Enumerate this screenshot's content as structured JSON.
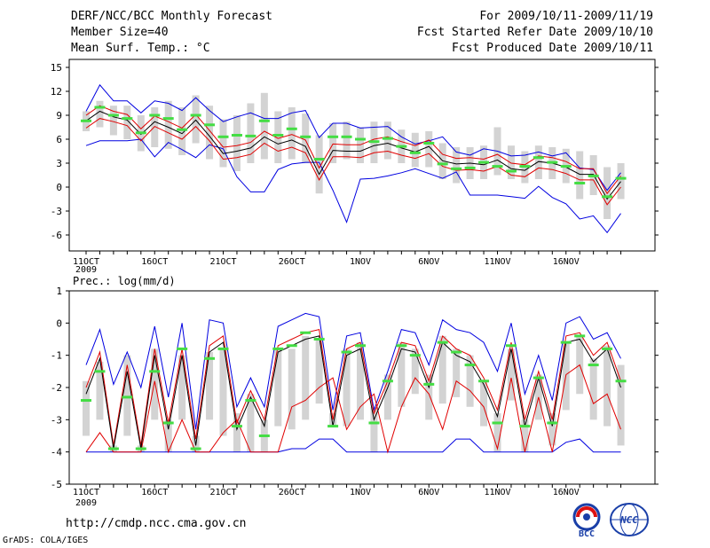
{
  "header": {
    "title": "DERF/NCC/BCC Monthly Forecast",
    "member_size": "Member Size=40",
    "variable_1": "Mean Surf. Temp.: °C",
    "period": "For 2009/10/11-2009/11/19",
    "fcst_started": "Fcst Started Refer Date 2009/10/10",
    "fcst_produced": "Fcst Produced Date 2009/10/11"
  },
  "colors": {
    "box": "#d3d3d3",
    "mean": "#000000",
    "inner": "#e00000",
    "outer": "#0000e0",
    "obs": "#44dd44"
  },
  "chart_data": [
    {
      "type": "line",
      "title": "Mean Surf. Temp.: °C",
      "x_tick_labels": [
        "11OCT",
        "16OCT",
        "21OCT",
        "26OCT",
        "1NOV",
        "6NOV",
        "11NOV",
        "16NOV"
      ],
      "x_year_label": "2009",
      "ylim": [
        -8,
        16
      ],
      "y_ticks": [
        15,
        12,
        9,
        6,
        3,
        0,
        -3,
        -6
      ],
      "days": 40,
      "series": [
        {
          "name": "max",
          "values": [
            5.2,
            5.8,
            5.8,
            5.8,
            6.0,
            3.8,
            5.6,
            4.7,
            3.7,
            5.3,
            4.8,
            1.3,
            -0.6,
            -0.6,
            2.2,
            2.9,
            3.1,
            3.1,
            -0.4,
            -4.4,
            1.0,
            1.1,
            1.4,
            1.8,
            2.3,
            1.7,
            1.1,
            1.9,
            -1.0,
            -1.0,
            -1.0,
            -1.2,
            -1.4,
            0.1,
            -1.3,
            -2.1,
            -4.0,
            -3.6,
            -5.7,
            -3.3
          ]
        },
        {
          "name": "p10",
          "values": [
            7.4,
            8.6,
            8.2,
            7.7,
            5.8,
            7.6,
            6.8,
            6.0,
            7.6,
            5.8,
            3.5,
            3.7,
            4.1,
            5.5,
            4.5,
            5.0,
            4.3,
            0.9,
            3.8,
            3.8,
            3.7,
            4.3,
            4.5,
            4.0,
            3.6,
            4.2,
            2.6,
            2.1,
            2.2,
            2.0,
            2.6,
            1.5,
            1.3,
            2.4,
            2.2,
            1.7,
            0.9,
            0.9,
            -2.2,
            0.0
          ]
        },
        {
          "name": "mean",
          "values": [
            8.3,
            9.5,
            8.8,
            8.4,
            6.6,
            8.2,
            7.5,
            6.7,
            8.4,
            6.4,
            4.2,
            4.5,
            4.9,
            6.3,
            5.4,
            5.9,
            5.1,
            1.6,
            4.6,
            4.5,
            4.5,
            5.2,
            5.5,
            4.9,
            4.4,
            5.1,
            3.3,
            2.9,
            3.0,
            2.8,
            3.4,
            2.3,
            2.1,
            3.2,
            3.0,
            2.5,
            1.6,
            1.6,
            -1.5,
            0.7
          ]
        },
        {
          "name": "p90",
          "values": [
            9.0,
            10.2,
            9.5,
            9.1,
            7.3,
            8.9,
            8.2,
            7.4,
            9.1,
            7.1,
            5.0,
            5.2,
            5.6,
            7.0,
            6.1,
            6.6,
            5.9,
            2.4,
            5.4,
            5.3,
            5.3,
            6.0,
            6.3,
            5.7,
            5.2,
            5.9,
            4.1,
            3.6,
            3.7,
            3.5,
            4.1,
            3.0,
            2.8,
            3.9,
            3.7,
            3.2,
            2.3,
            2.3,
            -0.8,
            1.4
          ]
        },
        {
          "name": "min",
          "values": [
            9.5,
            12.8,
            10.8,
            10.8,
            9.3,
            10.8,
            10.5,
            9.6,
            11.2,
            9.6,
            8.2,
            8.8,
            9.3,
            8.6,
            8.6,
            9.3,
            9.6,
            6.2,
            8.0,
            8.0,
            7.4,
            7.5,
            7.6,
            6.3,
            5.4,
            5.8,
            6.3,
            4.4,
            4.0,
            4.8,
            4.5,
            3.9,
            4.0,
            4.4,
            3.9,
            4.3,
            2.4,
            2.2,
            -0.4,
            1.8
          ]
        },
        {
          "name": "box_low",
          "values": [
            7.0,
            7.5,
            6.5,
            6.0,
            4.5,
            5.0,
            4.8,
            4.0,
            5.5,
            3.5,
            2.5,
            2.0,
            3.0,
            3.5,
            3.0,
            3.5,
            3.0,
            -0.8,
            3.0,
            3.5,
            3.0,
            3.0,
            3.5,
            3.0,
            2.5,
            2.5,
            1.0,
            0.5,
            1.0,
            1.0,
            1.5,
            1.0,
            0.5,
            1.0,
            1.0,
            0.5,
            -1.5,
            -1.0,
            -4.0,
            -1.5
          ]
        },
        {
          "name": "box_high",
          "values": [
            9.5,
            10.8,
            10.2,
            10.2,
            9.0,
            10.0,
            10.8,
            10.0,
            11.5,
            10.2,
            8.5,
            9.0,
            10.5,
            11.8,
            9.5,
            10.0,
            9.2,
            6.5,
            8.0,
            8.2,
            7.5,
            8.2,
            8.2,
            7.2,
            6.8,
            7.0,
            5.5,
            5.0,
            5.0,
            5.2,
            7.5,
            5.2,
            4.5,
            5.2,
            5.0,
            4.8,
            4.5,
            4.0,
            2.5,
            3.0
          ]
        },
        {
          "name": "observed",
          "values": [
            8.3,
            10.0,
            9.0,
            8.6,
            6.8,
            9.0,
            8.6,
            7.2,
            9.0,
            7.8,
            6.3,
            6.5,
            6.4,
            8.3,
            6.5,
            7.3,
            6.3,
            3.5,
            6.3,
            6.3,
            6.0,
            5.7,
            6.1,
            5.1,
            4.3,
            5.5,
            2.9,
            2.3,
            2.4,
            3.1,
            2.6,
            2.0,
            2.6,
            3.7,
            3.1,
            2.6,
            0.5,
            1.4,
            -1.2,
            1.1
          ]
        }
      ]
    },
    {
      "type": "line",
      "title": "Prec.: log(mm/d)",
      "x_tick_labels": [
        "11OCT",
        "16OCT",
        "21OCT",
        "26OCT",
        "1NOV",
        "6NOV",
        "11NOV",
        "16NOV"
      ],
      "x_year_label": "2009",
      "ylim": [
        -5,
        1
      ],
      "y_ticks": [
        1,
        0,
        -1,
        -2,
        -3,
        -4,
        -5
      ],
      "days": 40,
      "series": [
        {
          "name": "max",
          "values": [
            -4,
            -4,
            -4,
            -4,
            -4,
            -4,
            -4,
            -4,
            -4,
            -4,
            -4,
            -4,
            -4,
            -4,
            -4,
            -3.9,
            -3.9,
            -3.6,
            -3.6,
            -4,
            -4,
            -4,
            -4,
            -4,
            -4,
            -4,
            -4,
            -3.6,
            -3.6,
            -4,
            -4,
            -4,
            -4,
            -4,
            -4,
            -3.7,
            -3.6,
            -4,
            -4,
            -4
          ]
        },
        {
          "name": "p10",
          "values": [
            -4,
            -3.4,
            -4,
            -4,
            -4,
            -1.8,
            -4,
            -3.0,
            -4,
            -4,
            -3.4,
            -3.0,
            -4,
            -4,
            -4,
            -2.6,
            -2.4,
            -2.0,
            -1.7,
            -3.3,
            -2.6,
            -2.2,
            -4,
            -2.6,
            -1.7,
            -2.2,
            -3.3,
            -1.8,
            -2.1,
            -2.6,
            -3.9,
            -1.7,
            -4,
            -2.3,
            -4,
            -1.6,
            -1.3,
            -2.5,
            -2.2,
            -3.3
          ]
        },
        {
          "name": "mean",
          "values": [
            -2.2,
            -1.1,
            -3.9,
            -1.5,
            -3.9,
            -1.0,
            -3.3,
            -1.0,
            -3.8,
            -0.9,
            -0.6,
            -3.3,
            -2.3,
            -3.2,
            -0.9,
            -0.7,
            -0.5,
            -0.4,
            -3.2,
            -1.0,
            -0.8,
            -3.0,
            -2.0,
            -0.8,
            -0.9,
            -2.0,
            -0.6,
            -1.0,
            -1.2,
            -1.9,
            -2.9,
            -0.8,
            -3.2,
            -1.7,
            -3.2,
            -0.6,
            -0.5,
            -1.2,
            -0.8,
            -2.0
          ]
        },
        {
          "name": "p90",
          "values": [
            -2.0,
            -0.9,
            -3.8,
            -1.3,
            -3.8,
            -0.8,
            -3.1,
            -0.8,
            -3.6,
            -0.7,
            -0.4,
            -3.1,
            -2.1,
            -3.0,
            -0.7,
            -0.5,
            -0.3,
            -0.2,
            -3.0,
            -0.8,
            -0.6,
            -2.8,
            -1.8,
            -0.6,
            -0.7,
            -1.8,
            -0.4,
            -0.8,
            -1.0,
            -1.7,
            -2.7,
            -0.6,
            -3.0,
            -1.5,
            -3.0,
            -0.4,
            -0.3,
            -1.0,
            -0.6,
            -1.8
          ]
        },
        {
          "name": "min",
          "values": [
            -1.3,
            -0.2,
            -1.9,
            -0.9,
            -2.0,
            -0.1,
            -2.3,
            0.0,
            -3.3,
            0.1,
            0.0,
            -2.6,
            -1.7,
            -2.6,
            -0.1,
            0.1,
            0.3,
            0.2,
            -2.7,
            -0.4,
            -0.3,
            -2.7,
            -1.5,
            -0.2,
            -0.3,
            -1.3,
            0.1,
            -0.2,
            -0.3,
            -0.6,
            -1.5,
            0.0,
            -2.2,
            -1.0,
            -2.4,
            0.0,
            0.2,
            -0.5,
            -0.3,
            -1.1
          ]
        },
        {
          "name": "box_low",
          "values": [
            -3.5,
            -3.0,
            -4.0,
            -3.5,
            -4.0,
            -3.0,
            -4.0,
            -3.0,
            -4.0,
            -3.0,
            -3.5,
            -4.0,
            -4.0,
            -4.0,
            -3.2,
            -3.3,
            -3.0,
            -2.5,
            -3.2,
            -3.2,
            -3.0,
            -4.0,
            -3.0,
            -2.6,
            -2.2,
            -3.0,
            -2.5,
            -2.3,
            -2.6,
            -3.2,
            -4.0,
            -2.4,
            -4.0,
            -3.0,
            -3.8,
            -2.7,
            -2.2,
            -3.0,
            -3.2,
            -3.8
          ]
        },
        {
          "name": "box_high",
          "values": [
            -1.8,
            -1.2,
            -3.8,
            -1.0,
            -3.8,
            -0.8,
            -3.0,
            -1.0,
            -3.5,
            -0.9,
            -0.8,
            -2.8,
            -2.2,
            -3.0,
            -0.8,
            -0.8,
            -0.4,
            -0.5,
            -2.8,
            -0.8,
            -0.6,
            -2.6,
            -1.6,
            -0.6,
            -0.8,
            -1.6,
            -0.4,
            -0.8,
            -1.0,
            -1.8,
            -2.8,
            -0.8,
            -3.0,
            -1.6,
            -2.8,
            -0.6,
            -0.4,
            -1.1,
            -0.7,
            -1.3
          ]
        },
        {
          "name": "observed",
          "values": [
            -2.4,
            -1.5,
            -3.9,
            -2.3,
            -3.9,
            -1.5,
            -3.1,
            -0.8,
            -3.9,
            -1.1,
            -0.8,
            -3.2,
            -2.4,
            -3.5,
            -0.8,
            -0.7,
            -0.3,
            -0.5,
            -3.2,
            -0.9,
            -0.7,
            -3.1,
            -1.8,
            -0.7,
            -1.0,
            -1.9,
            -0.6,
            -0.9,
            -1.3,
            -1.8,
            -3.1,
            -0.7,
            -3.2,
            -1.7,
            -3.1,
            -0.6,
            -0.4,
            -1.3,
            -0.8,
            -1.8
          ]
        }
      ]
    }
  ],
  "footer": {
    "url": "http://cmdp.ncc.cma.gov.cn",
    "grads_credit": "GrADS: COLA/IGES",
    "logo_bcc_text": "BCC",
    "logo_ncc_text": "NCC"
  }
}
